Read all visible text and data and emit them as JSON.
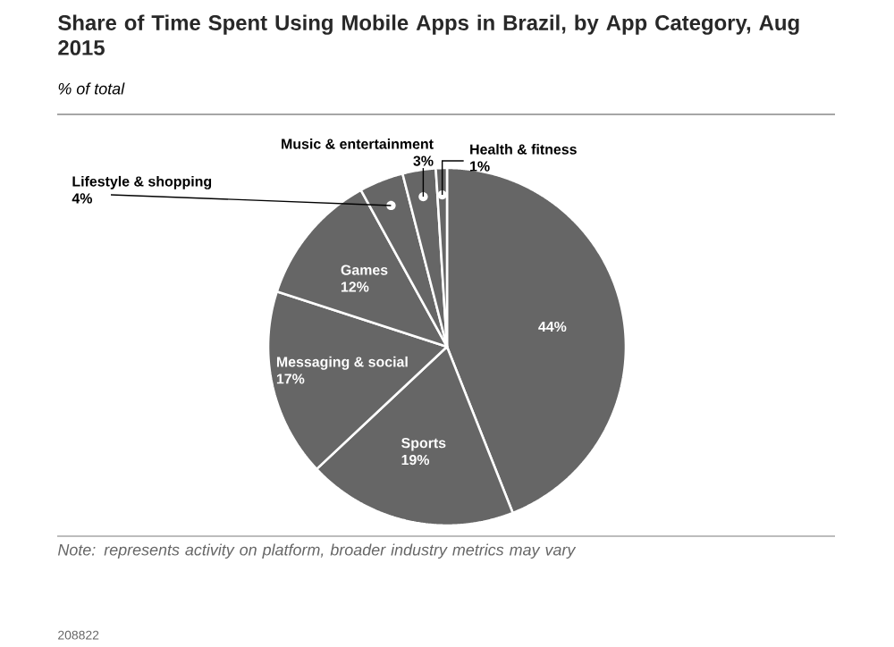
{
  "chart_data": {
    "type": "pie",
    "title": "Share of Time Spent Using Mobile Apps in Brazil, by App Category, Aug 2015",
    "subtitle": "% of total",
    "categories": [
      null,
      "Sports",
      "Messaging & social",
      "Games",
      "Lifestyle & shopping",
      "Music & entertainment",
      "Health & fitness"
    ],
    "values": [
      44,
      19,
      17,
      12,
      4,
      3,
      1
    ],
    "value_labels": [
      "44%",
      "19%",
      "17%",
      "12%",
      "4%",
      "3%",
      "1%"
    ],
    "colors": [
      "#666666",
      "#666666",
      "#666666",
      "#666666",
      "#666666",
      "#666666",
      "#666666"
    ],
    "annotations": [
      "Note: represents activity on platform, broader industry metrics may vary",
      "208822"
    ]
  }
}
